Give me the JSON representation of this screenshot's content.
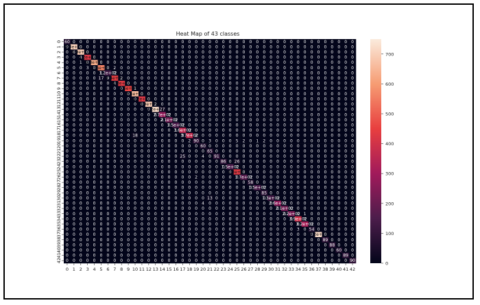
{
  "frame_color": "#000000",
  "chart_data": {
    "type": "heatmap",
    "title": "Heat Map of 43 classes",
    "xlabel": "",
    "ylabel": "",
    "n_classes": 43,
    "x_tick_labels": [
      "0",
      "1",
      "2",
      "3",
      "4",
      "5",
      "6",
      "7",
      "8",
      "9",
      "10",
      "11",
      "12",
      "13",
      "14",
      "15",
      "16",
      "17",
      "18",
      "19",
      "20",
      "21",
      "22",
      "23",
      "24",
      "25",
      "26",
      "27",
      "28",
      "29",
      "30",
      "31",
      "32",
      "33",
      "34",
      "35",
      "36",
      "37",
      "38",
      "39",
      "40",
      "41",
      "42"
    ],
    "y_tick_labels": [
      "0",
      "1",
      "2",
      "3",
      "4",
      "5",
      "6",
      "7",
      "8",
      "9",
      "10",
      "11",
      "12",
      "13",
      "14",
      "15",
      "16",
      "17",
      "18",
      "19",
      "20",
      "21",
      "22",
      "23",
      "24",
      "25",
      "26",
      "27",
      "28",
      "29",
      "30",
      "31",
      "32",
      "33",
      "34",
      "35",
      "36",
      "37",
      "38",
      "39",
      "40",
      "41",
      "42"
    ],
    "colorbar": {
      "range": [
        0,
        750
      ],
      "ticks": [
        0,
        100,
        200,
        300,
        400,
        500,
        600,
        700
      ],
      "colormap": "rocket",
      "colors": [
        "#03051a",
        "#4c1d4b",
        "#a11a5b",
        "#e83f3f",
        "#f69c73",
        "#faebdd"
      ]
    },
    "default_value": 0,
    "diagonal": [
      60,
      700,
      690,
      420,
      630,
      560,
      120,
      440,
      430,
      460,
      660,
      420,
      690,
      720,
      270,
      210,
      150,
      360,
      370,
      90,
      60,
      65,
      91,
      86,
      150,
      430,
      170,
      58,
      150,
      85,
      130,
      260,
      210,
      220,
      390,
      320,
      54,
      720,
      89,
      88,
      60,
      89,
      90
    ],
    "off_diagonal": [
      {
        "row": 2,
        "col": 1,
        "value": 6
      },
      {
        "row": 3,
        "col": 2,
        "value": 4
      },
      {
        "row": 4,
        "col": 2,
        "value": 1
      },
      {
        "row": 5,
        "col": 3,
        "value": 3
      },
      {
        "row": 5,
        "col": 7,
        "value": 2
      },
      {
        "row": 6,
        "col": 5,
        "value": 1
      },
      {
        "row": 7,
        "col": 5,
        "value": 17
      },
      {
        "row": 7,
        "col": 6,
        "value": 9
      },
      {
        "row": 7,
        "col": 8,
        "value": 2
      },
      {
        "row": 8,
        "col": 7,
        "value": 4
      },
      {
        "row": 9,
        "col": 10,
        "value": 1
      },
      {
        "row": 12,
        "col": 13,
        "value": 2
      },
      {
        "row": 13,
        "col": 14,
        "value": 27
      },
      {
        "row": 15,
        "col": 14,
        "value": 2
      },
      {
        "row": 17,
        "col": 16,
        "value": 1
      },
      {
        "row": 18,
        "col": 10,
        "value": 18
      },
      {
        "row": 18,
        "col": 19,
        "value": 2
      },
      {
        "row": 19,
        "col": 18,
        "value": 2
      },
      {
        "row": 19,
        "col": 21,
        "value": 3
      },
      {
        "row": 19,
        "col": 25,
        "value": 5
      },
      {
        "row": 19,
        "col": 26,
        "value": 2
      },
      {
        "row": 19,
        "col": 28,
        "value": 1
      },
      {
        "row": 19,
        "col": 29,
        "value": 2
      },
      {
        "row": 22,
        "col": 17,
        "value": 25
      },
      {
        "row": 22,
        "col": 20,
        "value": 4
      },
      {
        "row": 23,
        "col": 25,
        "value": 26
      },
      {
        "row": 26,
        "col": 19,
        "value": 2
      },
      {
        "row": 30,
        "col": 21,
        "value": 13
      },
      {
        "row": 31,
        "col": 20,
        "value": 4
      },
      {
        "row": 33,
        "col": 35,
        "value": 1
      },
      {
        "row": 36,
        "col": 34,
        "value": 3
      }
    ]
  }
}
